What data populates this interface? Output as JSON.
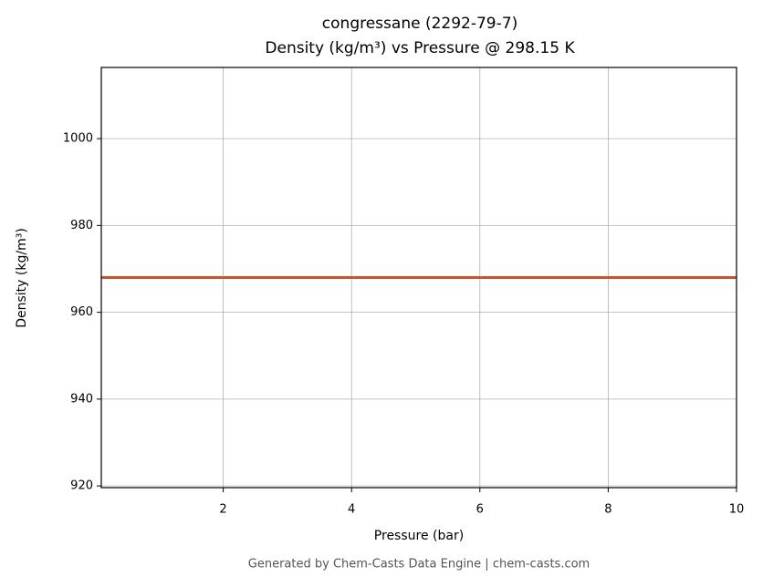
{
  "chart_data": {
    "type": "line",
    "title": [
      "congressane (2292-79-7)",
      "Density (kg/m³) vs Pressure @ 298.15 K"
    ],
    "x_label": "Pressure (bar)",
    "y_label": "Density (kg/m³)",
    "x": [
      0.1,
      10
    ],
    "series": [
      {
        "name": "Density",
        "color": "#c8522a",
        "values": [
          968,
          968
        ]
      }
    ],
    "xlim": [
      0.1,
      10
    ],
    "xticks": [
      2,
      4,
      6,
      8,
      10
    ],
    "ylim": [
      919.6,
      1016.4
    ],
    "yticks": [
      920,
      940,
      960,
      980,
      1000
    ],
    "grid": true,
    "footer": "Generated by Chem-Casts Data Engine | chem-casts.com"
  }
}
